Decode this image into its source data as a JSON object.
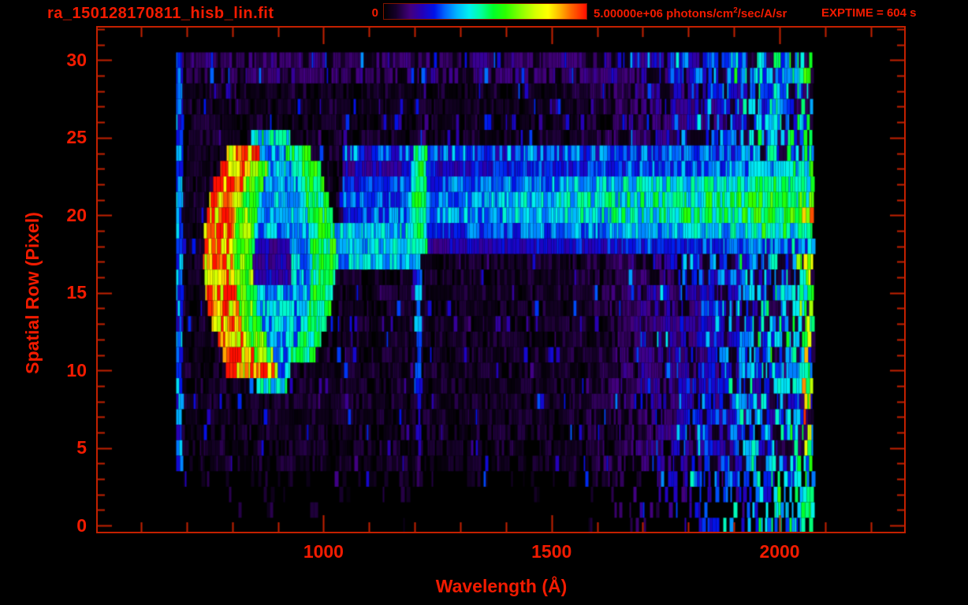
{
  "header": {
    "filename": "ra_150128170811_hisb_lin.fit",
    "colorbar_min_label": "0",
    "colorbar_max_label": "5.00000e+06 photons/cm",
    "colorbar_max_sup": "2",
    "colorbar_max_suffix": "/sec/A/sr",
    "exptime_label": "EXPTIME = 604 s"
  },
  "colors": {
    "background": "#000000",
    "text": "#f21b00",
    "frame": "#c32000",
    "colormap": [
      [
        0.0,
        "#000000"
      ],
      [
        0.06,
        "#16002a"
      ],
      [
        0.13,
        "#43007e"
      ],
      [
        0.19,
        "#2400b8"
      ],
      [
        0.25,
        "#0013e8"
      ],
      [
        0.3,
        "#0064ff"
      ],
      [
        0.36,
        "#00b4ff"
      ],
      [
        0.42,
        "#00f0f0"
      ],
      [
        0.48,
        "#00ff9d"
      ],
      [
        0.54,
        "#00ff2a"
      ],
      [
        0.6,
        "#2bff00"
      ],
      [
        0.68,
        "#8eff00"
      ],
      [
        0.75,
        "#d8ff00"
      ],
      [
        0.81,
        "#ffff00"
      ],
      [
        0.87,
        "#ffb400"
      ],
      [
        0.92,
        "#ff6c00"
      ],
      [
        1.0,
        "#ff0f00"
      ]
    ]
  },
  "chart_data": {
    "type": "heatmap",
    "title": "ra_150128170811_hisb_lin.fit",
    "xlabel": "Wavelength (Å)",
    "ylabel": "Spatial Row (Pixel)",
    "x_range": [
      505,
      2273
    ],
    "y_range": [
      -0.4,
      32.1
    ],
    "x_major_ticks": [
      1000,
      1500,
      2000
    ],
    "x_minor_step": 100,
    "y_major_ticks": [
      0,
      5,
      10,
      15,
      20,
      25,
      30
    ],
    "y_minor_step": 1,
    "colorbar": {
      "min": 0,
      "max": 5000000,
      "units": "photons/cm2/sec/A/sr"
    },
    "exptime_s": 604,
    "data_extent": {
      "wavelength_min": 677,
      "wavelength_max": 2071,
      "row_min": 0,
      "row_max": 30
    },
    "features": {
      "background": {
        "base": 0.05,
        "dark_gap_chance": 0.22,
        "blue_spike_chance": 0.08
      },
      "sparse_bottom_rows": {
        "rows_max": 3,
        "fill_chance": [
          0.03,
          0.04,
          0.08,
          0.3
        ]
      },
      "ragged_rows": {
        "row_min": 4,
        "row_max": 6,
        "black_chance": 0.22
      },
      "left_edge_line": {
        "wavelength_max": 691,
        "value": 0.27
      },
      "right_bright_wedge": {
        "wavelength_start": 1500,
        "amplitude": 0.45,
        "exponent": 1.6
      },
      "top_rows_boost": {
        "row_min": 29,
        "value": 0.06
      },
      "hot_right_column": {
        "wavelength_min": 2052,
        "wavelength_max": 2071,
        "row_max": 24,
        "value_min": 0.45,
        "value_max": 1.0,
        "chance": 0.5,
        "low_row_green": 0.5
      },
      "ring": {
        "center_wavelength": 885,
        "center_row": 17.3,
        "radius_wavelength": 115,
        "radius_rows": 7.9,
        "arc_thickness": 34,
        "hot_value": 0.92,
        "halo_value": 0.62,
        "green_value": 0.5,
        "interior_value": 0.36,
        "notch": {
          "w0": 838,
          "w1": 928,
          "r0": 15.5,
          "r1": 18.6,
          "value": 0.17
        }
      },
      "disk_band": {
        "row_min": 18,
        "row_max": 23,
        "row_profile": [
          0.55,
          0.8,
          1.0,
          1.0,
          0.9,
          0.65
        ],
        "wavelength_start": 1040,
        "amp_base": 0.28,
        "amp_slope": 0.27,
        "top_edge_row": 24,
        "top_edge_value": 0.3,
        "top_edge_wavelength_max": 1960
      },
      "connect_streak": {
        "row_min": 17,
        "row_max": 19,
        "w0": 1000,
        "w1": 1215,
        "value": 0.38
      },
      "lyman_alpha": {
        "wavelength": 1210,
        "row_profiles": [
          [
            18,
            25,
            0.5,
            16
          ],
          [
            12,
            18,
            0.33,
            7
          ],
          [
            8,
            12,
            0.26,
            6
          ],
          [
            5,
            8,
            0.2,
            5
          ],
          [
            3,
            5,
            0.12,
            5
          ]
        ]
      }
    }
  }
}
